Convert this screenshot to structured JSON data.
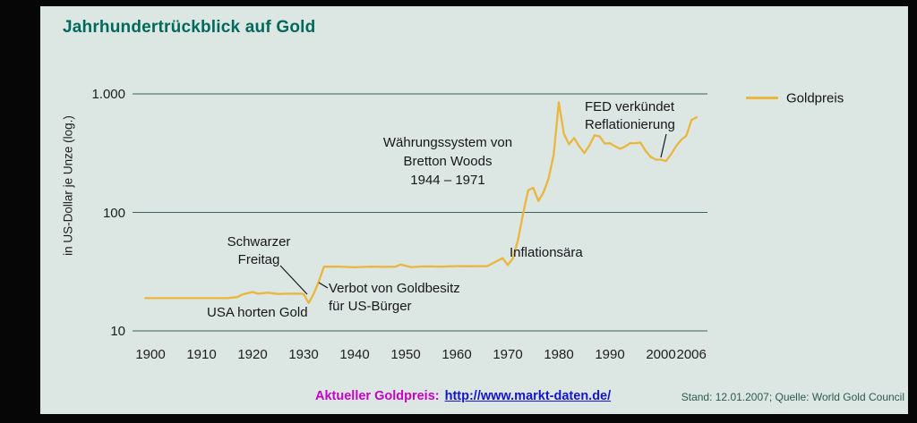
{
  "header": {
    "title": "Jahrhundertrückblick auf Gold"
  },
  "footer": {
    "price_label": "Aktueller Goldpreis:",
    "price_link": "http://www.markt-daten.de/",
    "source": "Stand: 12.01.2007; Quelle: World Gold Council"
  },
  "chart_data": {
    "type": "line",
    "title": "Jahrhundertrückblick auf Gold",
    "ylabel": "in US-Dollar je Unze (log.)",
    "yscale": "log",
    "ylim": [
      10,
      1000
    ],
    "grid": "horizontal",
    "legend_position": "top-right",
    "line_color": "#EAB63E",
    "grid_color": "#37645B",
    "y_ticks": [
      {
        "label": "1.000",
        "value": 1000
      },
      {
        "label": "100",
        "value": 100
      },
      {
        "label": "10",
        "value": 10
      }
    ],
    "x_ticks": [
      1900,
      1910,
      1920,
      1930,
      1940,
      1950,
      1960,
      1970,
      1980,
      1990,
      2000,
      2006
    ],
    "series": [
      {
        "name": "Goldpreis",
        "points": [
          [
            1899,
            18.9
          ],
          [
            1904,
            18.9
          ],
          [
            1908,
            18.9
          ],
          [
            1912,
            18.9
          ],
          [
            1915,
            18.9
          ],
          [
            1917,
            19.3
          ],
          [
            1918,
            20.3
          ],
          [
            1920,
            21.3
          ],
          [
            1921,
            20.6
          ],
          [
            1923,
            21.0
          ],
          [
            1925,
            20.5
          ],
          [
            1927,
            20.6
          ],
          [
            1929,
            20.6
          ],
          [
            1930,
            20.5
          ],
          [
            1931,
            17.2
          ],
          [
            1932,
            20.6
          ],
          [
            1933,
            26.3
          ],
          [
            1934,
            34.9
          ],
          [
            1937,
            34.8
          ],
          [
            1940,
            34.4
          ],
          [
            1943,
            34.8
          ],
          [
            1946,
            34.7
          ],
          [
            1948,
            34.8
          ],
          [
            1949,
            36.3
          ],
          [
            1951,
            34.6
          ],
          [
            1954,
            35.0
          ],
          [
            1957,
            34.9
          ],
          [
            1960,
            35.2
          ],
          [
            1963,
            35.1
          ],
          [
            1966,
            35.2
          ],
          [
            1968,
            39.1
          ],
          [
            1969,
            41.1
          ],
          [
            1970,
            36.0
          ],
          [
            1971,
            40.8
          ],
          [
            1972,
            58.2
          ],
          [
            1973,
            97.4
          ],
          [
            1974,
            154.0
          ],
          [
            1975,
            160.9
          ],
          [
            1976,
            124.7
          ],
          [
            1977,
            147.7
          ],
          [
            1978,
            193.4
          ],
          [
            1979,
            306.7
          ],
          [
            1980,
            850
          ],
          [
            1981,
            460
          ],
          [
            1982,
            376
          ],
          [
            1983,
            424
          ],
          [
            1984,
            361
          ],
          [
            1985,
            317
          ],
          [
            1986,
            368
          ],
          [
            1987,
            447
          ],
          [
            1988,
            437
          ],
          [
            1989,
            381
          ],
          [
            1990,
            383
          ],
          [
            1991,
            362
          ],
          [
            1992,
            344
          ],
          [
            1993,
            360
          ],
          [
            1994,
            384
          ],
          [
            1995,
            384
          ],
          [
            1996,
            388
          ],
          [
            1997,
            331
          ],
          [
            1998,
            294
          ],
          [
            1999,
            279
          ],
          [
            2000,
            279
          ],
          [
            2001,
            271
          ],
          [
            2002,
            310
          ],
          [
            2003,
            363
          ],
          [
            2004,
            410
          ],
          [
            2005,
            445
          ],
          [
            2006,
            603
          ],
          [
            2007,
            635
          ]
        ]
      }
    ],
    "annotations": [
      {
        "text": "Schwarzer\nFreitag"
      },
      {
        "text": "USA horten Gold"
      },
      {
        "text": "Verbot von Goldbesitz\nfür US-Bürger"
      },
      {
        "text": "Währungssystem von\nBretton Woods\n1944 – 1971"
      },
      {
        "text": "Inflationsära"
      },
      {
        "text": "FED verkündet\nReflationierung"
      }
    ]
  }
}
